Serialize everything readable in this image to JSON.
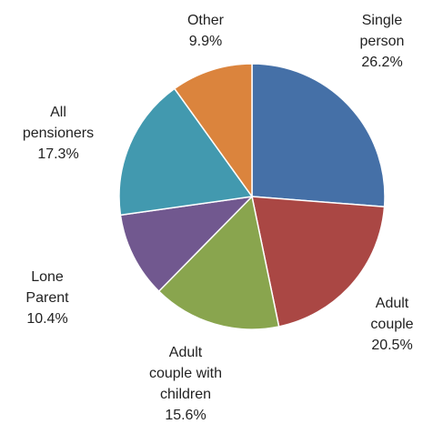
{
  "chart_data": {
    "type": "pie",
    "title": "",
    "start_angle_deg": 0,
    "direction": "clockwise",
    "slices": [
      {
        "label_lines": [
          "Single",
          "person"
        ],
        "value_text": "26.2%",
        "value": 26.2,
        "color": "#4570A7"
      },
      {
        "label_lines": [
          "Adult",
          "couple"
        ],
        "value_text": "20.5%",
        "value": 20.5,
        "color": "#AA4744"
      },
      {
        "label_lines": [
          "Adult",
          "couple with",
          "children"
        ],
        "value_text": "15.6%",
        "value": 15.6,
        "color": "#89A54E"
      },
      {
        "label_lines": [
          "Lone",
          "Parent"
        ],
        "value_text": "10.4%",
        "value": 10.4,
        "color": "#71588F"
      },
      {
        "label_lines": [
          "All",
          "pensioners"
        ],
        "value_text": "17.3%",
        "value": 17.3,
        "color": "#4299AF"
      },
      {
        "label_lines": [
          "Other"
        ],
        "value_text": "9.9%",
        "value": 9.9,
        "color": "#DB843D"
      }
    ]
  }
}
